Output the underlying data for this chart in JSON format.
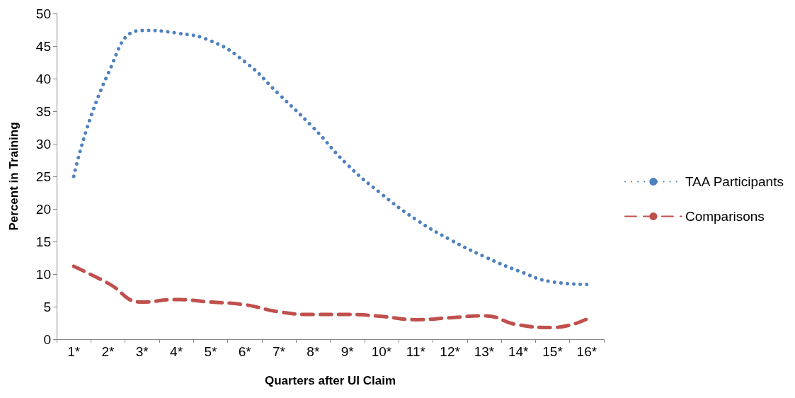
{
  "chart_data": {
    "type": "line",
    "xlabel": "Quarters after UI Claim",
    "ylabel": "Percent in Training",
    "categories": [
      "1*",
      "2*",
      "3*",
      "4*",
      "5*",
      "6*",
      "7*",
      "8*",
      "9*",
      "10*",
      "11*",
      "12*",
      "13*",
      "14*",
      "15*",
      "16*"
    ],
    "series": [
      {
        "name": "TAA Participants",
        "color": "#4f81bd",
        "line_style": "dotted",
        "values": [
          25,
          40.7,
          47.4,
          47,
          45.8,
          42.6,
          37.6,
          32.5,
          26.8,
          22.3,
          18.4,
          15.3,
          12.7,
          10.5,
          8.8,
          8.4
        ]
      },
      {
        "name": "Comparisons",
        "color": "#c0504d",
        "line_style": "dashed",
        "values": [
          11.2,
          8.6,
          5.7,
          6.1,
          5.7,
          5.3,
          4.2,
          3.8,
          3.8,
          3.5,
          3.0,
          3.3,
          3.6,
          2.2,
          1.8,
          3.1
        ]
      }
    ],
    "ylim": [
      0,
      50
    ],
    "yticks": [
      0,
      5,
      10,
      15,
      20,
      25,
      30,
      35,
      40,
      45,
      50
    ],
    "grid": false,
    "legend": "right",
    "marker": "none"
  }
}
